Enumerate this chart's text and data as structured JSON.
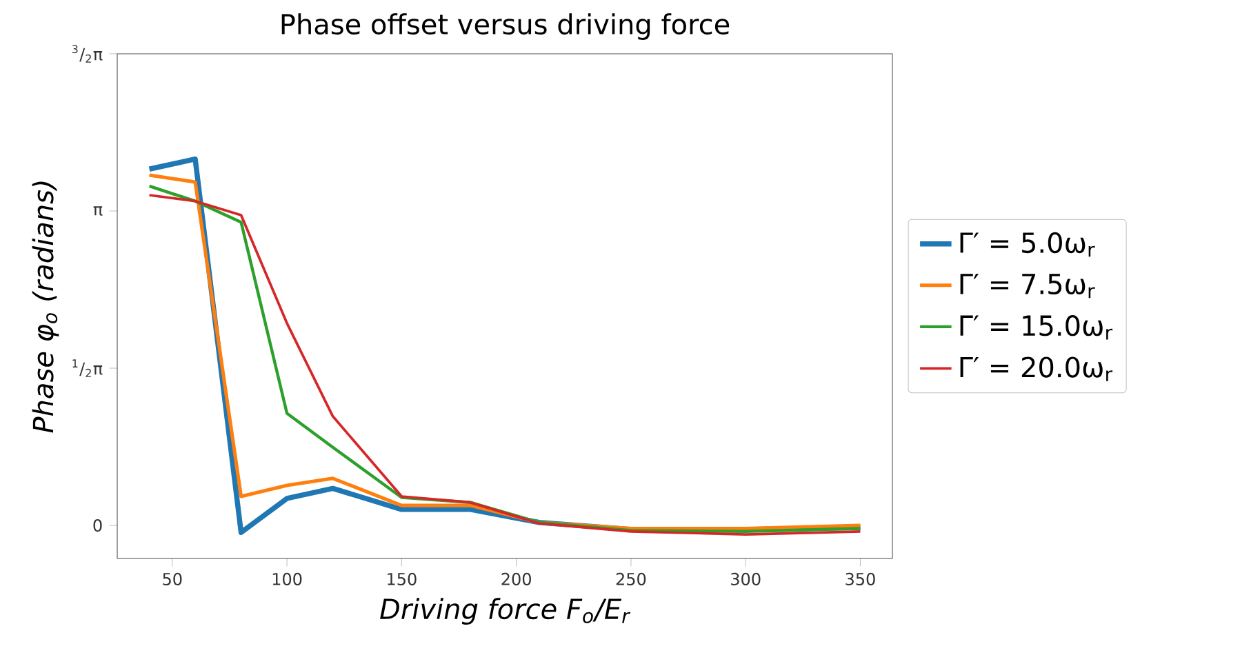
{
  "chart_data": {
    "type": "line",
    "title": "Phase offset versus driving force",
    "xlabel": "Driving force F$_{o}$/E$_{r}$",
    "ylabel": "Phase φ$_{o}$ (radians)",
    "x": [
      40,
      60,
      80,
      100,
      120,
      150,
      180,
      210,
      250,
      300,
      350
    ],
    "series": [
      {
        "name": "Γ′ = 5.0ω$_{r}$",
        "color": "#1f77b4",
        "values": [
          3.56,
          3.66,
          -0.07,
          0.27,
          0.37,
          0.16,
          0.16,
          0.03,
          -0.04,
          -0.04,
          -0.02
        ]
      },
      {
        "name": "Γ′ = 7.5ω$_{r}$",
        "color": "#ff7f0e",
        "values": [
          3.5,
          3.43,
          0.29,
          0.4,
          0.47,
          0.2,
          0.2,
          0.03,
          -0.03,
          -0.03,
          0.0
        ]
      },
      {
        "name": "Γ′ = 15.0ω$_{r}$",
        "color": "#2ca02c",
        "values": [
          3.39,
          3.24,
          3.03,
          1.12,
          0.78,
          0.28,
          0.23,
          0.03,
          -0.05,
          -0.06,
          -0.03
        ]
      },
      {
        "name": "Γ′ = 20.0ω$_{r}$",
        "color": "#d62728",
        "values": [
          3.3,
          3.24,
          3.1,
          2.02,
          1.09,
          0.29,
          0.23,
          0.02,
          -0.06,
          -0.09,
          -0.06
        ]
      }
    ],
    "xlim": [
      26,
      364
    ],
    "ylim": [
      -0.33,
      4.712
    ],
    "xticks": [
      50,
      100,
      150,
      200,
      250,
      300,
      350
    ],
    "yticks": [
      {
        "value": 0,
        "label": "0"
      },
      {
        "value": 1.571,
        "label": "$^{1}$/$_{2}$π"
      },
      {
        "value": 3.1416,
        "label": "π"
      },
      {
        "value": 4.712,
        "label": "$^{3}$/$_{2}$π"
      }
    ],
    "legend": "right",
    "grid": false,
    "marker": "none"
  }
}
